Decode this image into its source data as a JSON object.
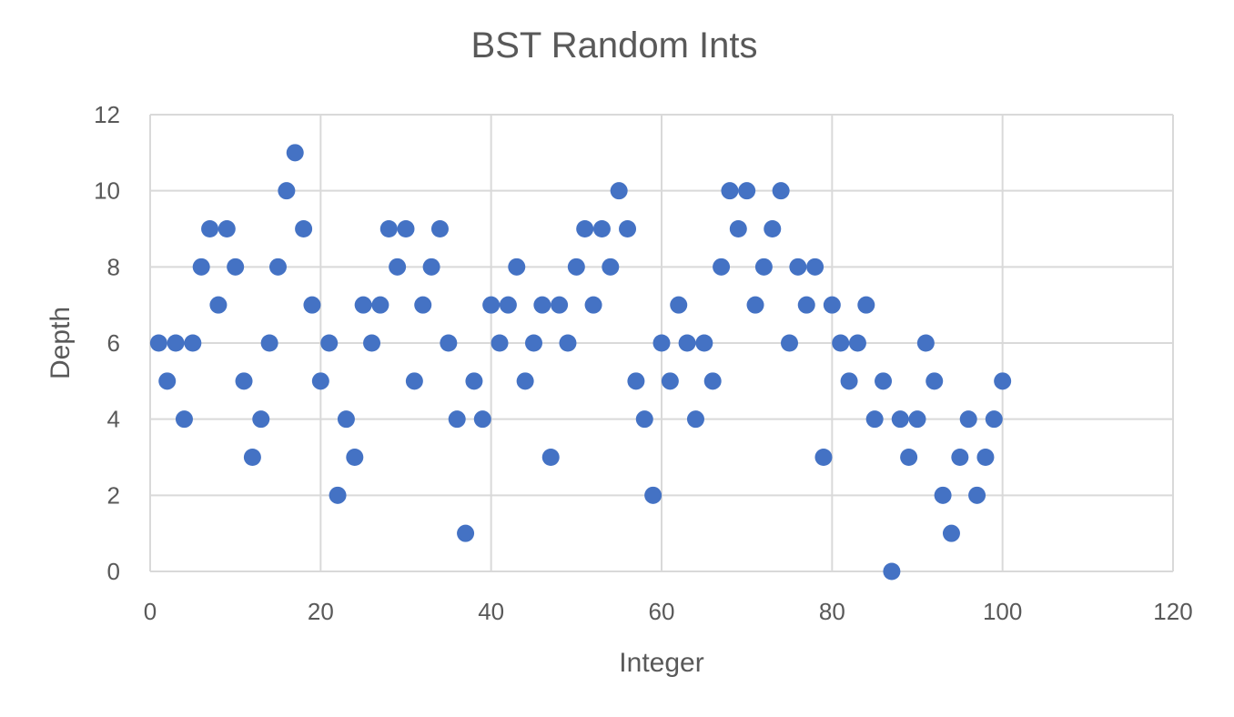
{
  "chart_data": {
    "type": "scatter",
    "title": "BST Random Ints",
    "xlabel": "Integer",
    "ylabel": "Depth",
    "xlim": [
      0,
      120
    ],
    "ylim": [
      0,
      12
    ],
    "x_ticks": [
      "0",
      "20",
      "40",
      "60",
      "80",
      "100",
      "120"
    ],
    "y_ticks": [
      "0",
      "2",
      "4",
      "6",
      "8",
      "10",
      "12"
    ],
    "grid": true,
    "legend": "none",
    "colors": {
      "marker": "#4472c4",
      "grid": "#d9d9d9",
      "text": "#595959"
    },
    "series": [
      {
        "x": [
          1,
          2,
          3,
          4,
          5,
          6,
          7,
          8,
          9,
          10,
          11,
          12,
          13,
          14,
          15,
          16,
          17,
          18,
          19,
          20,
          21,
          22,
          23,
          24,
          25,
          26,
          27,
          28,
          29,
          30,
          31,
          32,
          33,
          34,
          35,
          36,
          37,
          38,
          39,
          40,
          41,
          42,
          43,
          44,
          45,
          46,
          47,
          48,
          49,
          50,
          51,
          52,
          53,
          54,
          55,
          56,
          57,
          58,
          59,
          60,
          61,
          62,
          63,
          64,
          65,
          66,
          67,
          68,
          69,
          70,
          71,
          72,
          73,
          74,
          75,
          76,
          77,
          78,
          79,
          80,
          81,
          82,
          83,
          84,
          85,
          86,
          87,
          88,
          89,
          90,
          91,
          92,
          93,
          94,
          95,
          96,
          97,
          98,
          99,
          100
        ],
        "y": [
          6,
          5,
          6,
          4,
          6,
          8,
          9,
          7,
          9,
          8,
          5,
          3,
          4,
          6,
          8,
          10,
          11,
          9,
          7,
          5,
          6,
          2,
          4,
          3,
          7,
          6,
          7,
          9,
          8,
          9,
          5,
          7,
          8,
          9,
          6,
          4,
          1,
          5,
          4,
          7,
          6,
          7,
          8,
          5,
          6,
          7,
          3,
          7,
          6,
          8,
          9,
          7,
          9,
          8,
          10,
          9,
          5,
          4,
          2,
          6,
          5,
          7,
          6,
          4,
          6,
          5,
          8,
          10,
          9,
          10,
          7,
          8,
          9,
          10,
          6,
          8,
          7,
          8,
          3,
          7,
          6,
          5,
          6,
          7,
          4,
          5,
          0,
          4,
          3,
          4,
          6,
          5,
          2,
          1,
          3,
          4,
          2,
          3,
          4,
          5
        ]
      }
    ]
  }
}
